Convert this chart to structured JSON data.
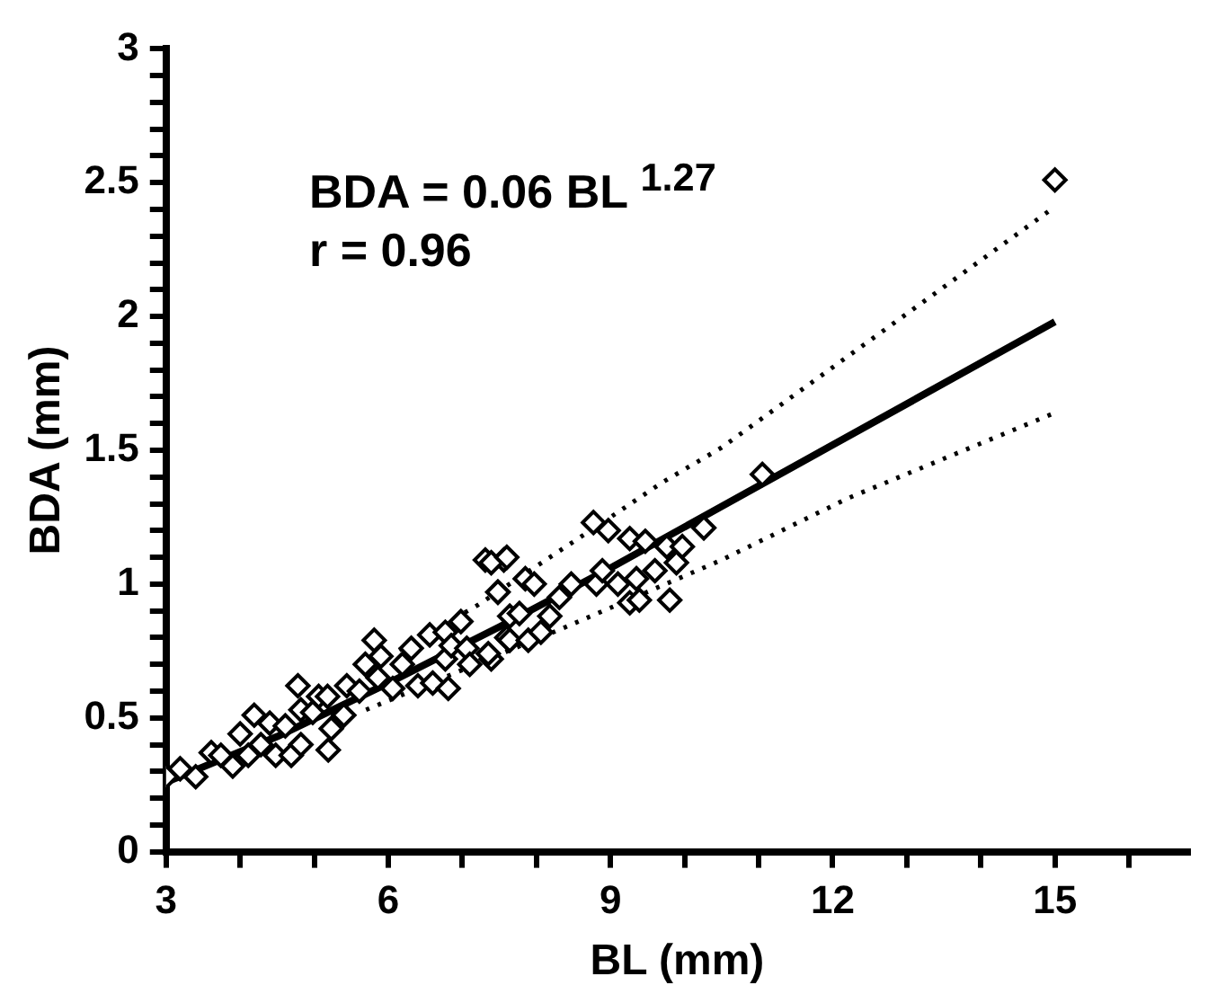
{
  "chart_data": {
    "type": "scatter",
    "xlabel": "BL (mm)",
    "ylabel": "BDA (mm)",
    "annotations": [
      "BDA = 0.06 BL $^{1.27}$",
      "r = 0.96"
    ],
    "xlim": [
      3,
      16.8
    ],
    "xticks": [
      3,
      {
        "value": 4,
        "label": null
      },
      {
        "value": 5,
        "label": null
      },
      6,
      {
        "value": 7,
        "label": null
      },
      {
        "value": 8,
        "label": null
      },
      9,
      {
        "value": 10,
        "label": null
      },
      {
        "value": 11,
        "label": null
      },
      12,
      {
        "value": 13,
        "label": null
      },
      {
        "value": 14,
        "label": null
      },
      15,
      {
        "value": 16,
        "label": null
      }
    ],
    "ylim": [
      0,
      3
    ],
    "yticks": [
      0,
      {
        "value": 0.1,
        "label": null
      },
      {
        "value": 0.2,
        "label": null
      },
      {
        "value": 0.3,
        "label": null
      },
      {
        "value": 0.4,
        "label": null
      },
      0.5,
      {
        "value": 0.6,
        "label": null
      },
      {
        "value": 0.7,
        "label": null
      },
      {
        "value": 0.8,
        "label": null
      },
      {
        "value": 0.9,
        "label": null
      },
      1,
      {
        "value": 1.1,
        "label": null
      },
      {
        "value": 1.2,
        "label": null
      },
      {
        "value": 1.3,
        "label": null
      },
      {
        "value": 1.4,
        "label": null
      },
      1.5,
      {
        "value": 1.6,
        "label": null
      },
      {
        "value": 1.7,
        "label": null
      },
      {
        "value": 1.8,
        "label": null
      },
      {
        "value": 1.9,
        "label": null
      },
      2,
      {
        "value": 2.1,
        "label": null
      },
      {
        "value": 2.2,
        "label": null
      },
      {
        "value": 2.3,
        "label": null
      },
      {
        "value": 2.4,
        "label": null
      },
      2.5,
      {
        "value": 2.6,
        "label": null
      },
      {
        "value": 2.7,
        "label": null
      },
      {
        "value": 2.8,
        "label": null
      },
      {
        "value": 2.9,
        "label": null
      },
      3
    ],
    "grid": false,
    "legend": false,
    "series": [
      {
        "type": "scatter",
        "color": "#000000",
        "marker": "diamond",
        "x": [
          3.0,
          3.19,
          3.4,
          3.61,
          3.74,
          3.9,
          4.0,
          4.11,
          4.19,
          4.28,
          4.4,
          4.48,
          4.61,
          4.69,
          4.78,
          4.82,
          4.82,
          4.98,
          5.06,
          5.19,
          5.18,
          5.23,
          5.4,
          5.44,
          5.61,
          5.69,
          5.81,
          5.86,
          5.9,
          6.06,
          6.19,
          6.31,
          6.4,
          6.56,
          6.6,
          6.77,
          6.77,
          6.85,
          6.81,
          6.98,
          7.06,
          7.1,
          7.31,
          7.56,
          7.48,
          7.39,
          7.6,
          7.64,
          7.39,
          7.6,
          7.48,
          7.85,
          7.97,
          7.77,
          7.35,
          7.64,
          7.89,
          8.06,
          8.18,
          8.31,
          8.47,
          8.77,
          8.97,
          8.81,
          8.89,
          9.1,
          9.26,
          9.47,
          9.35,
          9.26,
          9.39,
          9.6,
          9.76,
          9.89,
          9.97,
          9.8,
          10.26,
          11.05,
          15.0
        ],
        "values": [
          0.28,
          0.31,
          0.28,
          0.37,
          0.36,
          0.32,
          0.44,
          0.36,
          0.51,
          0.4,
          0.48,
          0.36,
          0.47,
          0.36,
          0.62,
          0.53,
          0.4,
          0.52,
          0.58,
          0.38,
          0.58,
          0.46,
          0.51,
          0.62,
          0.6,
          0.7,
          0.79,
          0.65,
          0.73,
          0.61,
          0.7,
          0.76,
          0.62,
          0.81,
          0.63,
          0.82,
          0.72,
          0.77,
          0.61,
          0.86,
          0.76,
          0.7,
          1.09,
          1.09,
          0.97,
          0.72,
          0.8,
          0.88,
          1.08,
          1.1,
          0.97,
          1.02,
          1.0,
          0.89,
          0.74,
          0.79,
          0.79,
          0.82,
          0.88,
          0.95,
          1.0,
          1.23,
          1.2,
          1.0,
          1.05,
          1.0,
          1.17,
          1.16,
          1.02,
          0.93,
          0.94,
          1.05,
          1.14,
          1.08,
          1.14,
          0.94,
          1.21,
          1.41,
          2.51
        ]
      },
      {
        "type": "line",
        "color": "#000000",
        "marker": "none",
        "line_style": "solid",
        "x": [
          3,
          4.5,
          6,
          7.5,
          9,
          10.5,
          12,
          13.5,
          15
        ],
        "values": [
          0.26,
          0.43,
          0.63,
          0.84,
          1.06,
          1.29,
          1.52,
          1.75,
          1.98
        ]
      },
      {
        "type": "line",
        "color": "#000000",
        "marker": "none",
        "line_style": "dotted",
        "x": [
          6,
          7.2,
          9,
          9.7,
          10.5,
          12.2,
          15
        ],
        "values": [
          0.73,
          0.92,
          1.25,
          1.38,
          1.51,
          1.85,
          2.41
        ]
      },
      {
        "type": "line",
        "color": "#000000",
        "marker": "none",
        "line_style": "dotted",
        "x": [
          5.7,
          8.4,
          10.5,
          12.2,
          15
        ],
        "values": [
          0.53,
          0.84,
          1.09,
          1.32,
          1.64
        ]
      }
    ]
  }
}
